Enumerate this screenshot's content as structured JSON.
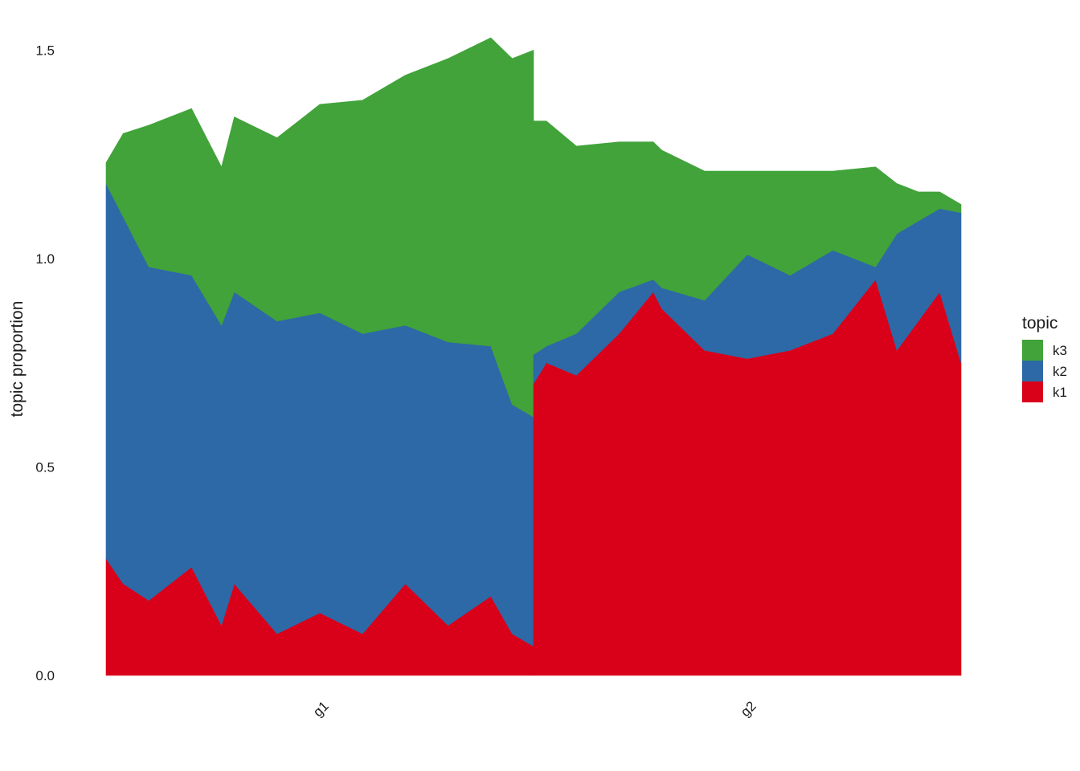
{
  "chart_data": {
    "type": "area",
    "ylabel": "topic proportion",
    "ylim": [
      0,
      1.55
    ],
    "yticks": [
      "0.0",
      "0.5",
      "1.0",
      "1.5"
    ],
    "groups": [
      {
        "label": "g1",
        "x": [
          0,
          0.04,
          0.1,
          0.2,
          0.27,
          0.3,
          0.4,
          0.5,
          0.6,
          0.7,
          0.8,
          0.9,
          0.95,
          1.0
        ]
      },
      {
        "label": "g2",
        "x": [
          0,
          0.03,
          0.1,
          0.2,
          0.28,
          0.3,
          0.4,
          0.5,
          0.6,
          0.7,
          0.8,
          0.85,
          0.9,
          0.95,
          1.0
        ]
      }
    ],
    "legend": {
      "title": "topic",
      "position": "right",
      "items": [
        {
          "label": "k3",
          "color": "#41a33a"
        },
        {
          "label": "k2",
          "color": "#2d69a6"
        },
        {
          "label": "k1",
          "color": "#d9001a"
        }
      ]
    },
    "series": [
      {
        "name": "k1",
        "color": "#d9001a",
        "g1": [
          0.28,
          0.22,
          0.18,
          0.26,
          0.12,
          0.22,
          0.1,
          0.15,
          0.1,
          0.22,
          0.12,
          0.19,
          0.1,
          0.07
        ],
        "g2": [
          0.7,
          0.75,
          0.72,
          0.82,
          0.92,
          0.88,
          0.78,
          0.76,
          0.78,
          0.82,
          0.95,
          0.78,
          0.85,
          0.92,
          0.75
        ]
      },
      {
        "name": "k2",
        "color": "#2d69a6",
        "g1": [
          0.9,
          0.88,
          0.8,
          0.7,
          0.72,
          0.7,
          0.75,
          0.72,
          0.72,
          0.62,
          0.68,
          0.6,
          0.55,
          0.55
        ],
        "g2": [
          0.07,
          0.04,
          0.1,
          0.1,
          0.03,
          0.05,
          0.12,
          0.25,
          0.18,
          0.2,
          0.03,
          0.28,
          0.24,
          0.2,
          0.36
        ]
      },
      {
        "name": "k3",
        "color": "#41a33a",
        "g1": [
          0.05,
          0.2,
          0.34,
          0.4,
          0.38,
          0.42,
          0.44,
          0.5,
          0.56,
          0.6,
          0.68,
          0.74,
          0.83,
          0.88
        ],
        "g2": [
          0.56,
          0.54,
          0.45,
          0.36,
          0.33,
          0.33,
          0.31,
          0.2,
          0.25,
          0.19,
          0.24,
          0.12,
          0.07,
          0.04,
          0.02
        ]
      }
    ]
  }
}
